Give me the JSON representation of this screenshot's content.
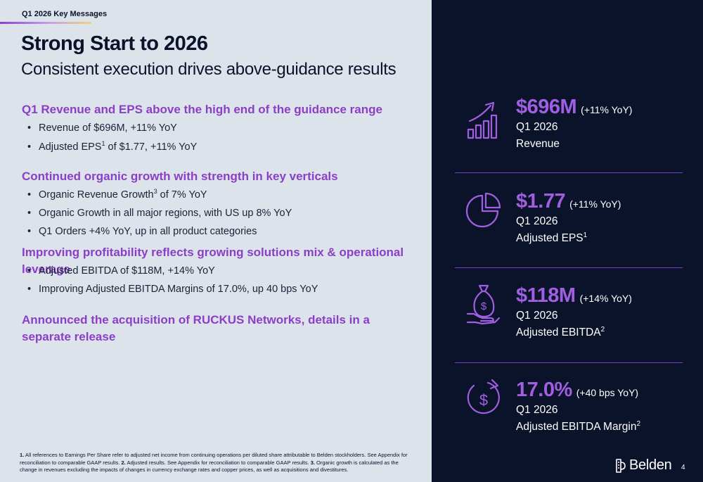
{
  "header": {
    "tag": "Q1 2026 Key Messages",
    "title": "Strong Start to 2026",
    "subtitle": "Consistent execution drives above-guidance results"
  },
  "sections": [
    {
      "heading": "Q1 Revenue and EPS above the high end of the guidance range",
      "bullets": [
        {
          "pre": "Revenue of $696M, +11% YoY",
          "sup": "",
          "post": ""
        },
        {
          "pre": "Adjusted EPS",
          "sup": "1",
          "post": " of $1.77, +11% YoY"
        }
      ]
    },
    {
      "heading": "Continued organic growth with strength in key verticals",
      "bullets": [
        {
          "pre": "Organic Revenue Growth",
          "sup": "3",
          "post": " of 7% YoY"
        },
        {
          "pre": "Organic Growth in all major regions, with US up 8% YoY",
          "sup": "",
          "post": ""
        },
        {
          "pre": "Q1 Orders +4% YoY, up in all product categories",
          "sup": "",
          "post": ""
        }
      ]
    },
    {
      "heading": "Improving profitability reflects growing solutions mix & operational leverage",
      "bullets": [
        {
          "pre": "Adjusted EBITDA of $118M, +14% YoY",
          "sup": "",
          "post": ""
        },
        {
          "pre": "Improving Adjusted EBITDA Margins of 17.0%, up 40 bps YoY",
          "sup": "",
          "post": ""
        }
      ]
    },
    {
      "heading": "Announced the acquisition of RUCKUS Networks, details in a separate release",
      "bullets": []
    }
  ],
  "bullet_char": "•",
  "kpis": [
    {
      "value": "$696M",
      "yoy": "(+11% YoY)",
      "line1": "Q1 2026",
      "line2": "Revenue",
      "sup": "",
      "icon": "growth-chart-icon"
    },
    {
      "value": "$1.77",
      "yoy": "(+11% YoY)",
      "line1": "Q1 2026",
      "line2": "Adjusted EPS",
      "sup": "1",
      "icon": "pie-chart-icon"
    },
    {
      "value": "$118M",
      "yoy": "(+14% YoY)",
      "line1": "Q1 2026",
      "line2": "Adjusted EBITDA",
      "sup": "2",
      "icon": "money-bag-hand-icon"
    },
    {
      "value": "17.0%",
      "yoy": "(+40 bps YoY)",
      "line1": "Q1 2026",
      "line2": "Adjusted EBITDA Margin",
      "sup": "2",
      "icon": "dollar-cycle-icon"
    }
  ],
  "footnote": [
    {
      "num": "1.",
      "text": " All references to Earnings Per Share refer to adjusted net income from continuing operations per diluted share attributable to Belden stockholders. See Appendix for reconciliation to comparable GAAP results. "
    },
    {
      "num": "2.",
      "text": " Adjusted results.  See Appendix for reconciliation to comparable GAAP results. "
    },
    {
      "num": "3.",
      "text": " Organic growth is calculated as the change in revenues excluding the impacts of changes in currency exchange rates and copper prices, as well as acquisitions and divestitures."
    }
  ],
  "brand": {
    "name": "Belden",
    "page_number": "4"
  },
  "colors": {
    "accent": "#8a3fc6",
    "kpi_value": "#a05ee0",
    "dark_bg": "#0b132b",
    "light_bg": "#dde3ea"
  }
}
